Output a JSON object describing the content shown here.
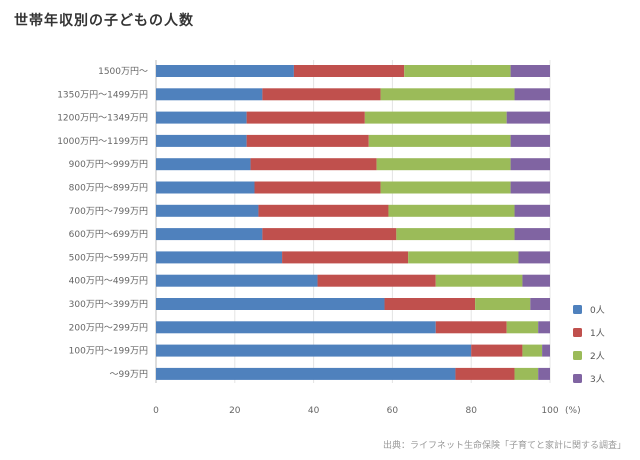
{
  "header": {
    "title": "世帯年収別の子どもの人数",
    "source": "出典：ライフネット生命保険「子育てと家計に関する調査」"
  },
  "chart_data": {
    "type": "bar",
    "orientation": "horizontal",
    "stacked": true,
    "categories": [
      "1500万円〜",
      "1350万円〜1499万円",
      "1200万円〜1349万円",
      "1000万円〜1199万円",
      "900万円〜999万円",
      "800万円〜899万円",
      "700万円〜799万円",
      "600万円〜699万円",
      "500万円〜599万円",
      "400万円〜499万円",
      "300万円〜399万円",
      "200万円〜299万円",
      "100万円〜199万円",
      "〜99万円"
    ],
    "series": [
      {
        "name": "0人",
        "color": "#4f81bd",
        "values": [
          35,
          27,
          23,
          23,
          24,
          25,
          26,
          27,
          32,
          41,
          58,
          71,
          80,
          76
        ]
      },
      {
        "name": "1人",
        "color": "#c0504d",
        "values": [
          28,
          30,
          30,
          31,
          32,
          32,
          33,
          34,
          32,
          30,
          23,
          18,
          13,
          15
        ]
      },
      {
        "name": "2人",
        "color": "#9bbb59",
        "values": [
          27,
          34,
          36,
          36,
          34,
          33,
          32,
          30,
          28,
          22,
          14,
          8,
          5,
          6
        ]
      },
      {
        "name": "3人",
        "color": "#8064a2",
        "values": [
          10,
          9,
          11,
          10,
          10,
          10,
          9,
          9,
          8,
          7,
          5,
          3,
          2,
          3
        ]
      }
    ],
    "xlim": [
      0,
      100
    ],
    "xticks": [
      "0",
      "20",
      "40",
      "60",
      "80",
      "100"
    ],
    "x_unit": "(%)",
    "grid": true,
    "legend_position": "right"
  }
}
